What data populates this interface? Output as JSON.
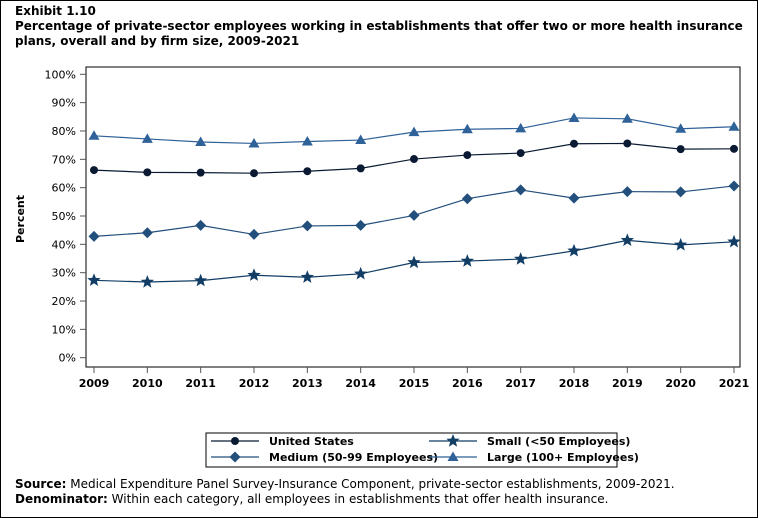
{
  "exhibit": "Exhibit 1.10",
  "title": "Percentage of private-sector employees working in establishments that offer two or more health insurance plans, overall and by firm size, 2009-2021",
  "chart_data": {
    "type": "line",
    "title": "Percentage of private-sector employees working in establishments that offer two or more health insurance plans, overall and by firm size, 2009-2021",
    "xlabel": "",
    "ylabel": "Percent",
    "ylim": [
      0,
      100
    ],
    "yticks": [
      "0%",
      "10%",
      "20%",
      "30%",
      "40%",
      "50%",
      "60%",
      "70%",
      "80%",
      "90%",
      "100%"
    ],
    "x": [
      2009,
      2010,
      2011,
      2012,
      2013,
      2014,
      2015,
      2016,
      2017,
      2018,
      2019,
      2020,
      2021
    ],
    "grid": false,
    "legend_placement": "bottom",
    "series": [
      {
        "name": "United States",
        "marker": "circle",
        "color": "#0a1a33",
        "values": [
          66.2,
          65.4,
          65.3,
          65.1,
          65.8,
          66.8,
          70.1,
          71.5,
          72.2,
          75.5,
          75.6,
          73.6,
          73.7
        ]
      },
      {
        "name": "Small (<50 Employees)",
        "marker": "star",
        "color": "#123e66",
        "values": [
          27.3,
          26.7,
          27.2,
          29.1,
          28.4,
          29.6,
          33.6,
          34.1,
          34.8,
          37.7,
          41.4,
          39.8,
          40.9
        ]
      },
      {
        "name": "Medium (50-99 Employees)",
        "marker": "diamond",
        "color": "#234f7c",
        "values": [
          42.8,
          44.1,
          46.7,
          43.5,
          46.5,
          46.7,
          50.2,
          56.1,
          59.2,
          56.3,
          58.6,
          58.5,
          60.6
        ]
      },
      {
        "name": "Large (100+ Employees)",
        "marker": "triangle",
        "color": "#2f6298",
        "values": [
          78.3,
          77.2,
          76.1,
          75.6,
          76.3,
          76.8,
          79.6,
          80.6,
          80.9,
          84.6,
          84.3,
          80.8,
          81.5
        ]
      }
    ]
  },
  "footer": {
    "source_label": "Source:",
    "source_text": " Medical Expenditure Panel Survey-Insurance Component, private-sector establishments, 2009-2021.",
    "denominator_label": "Denominator:",
    "denominator_text": " Within each category, all employees in establishments that offer health insurance."
  }
}
